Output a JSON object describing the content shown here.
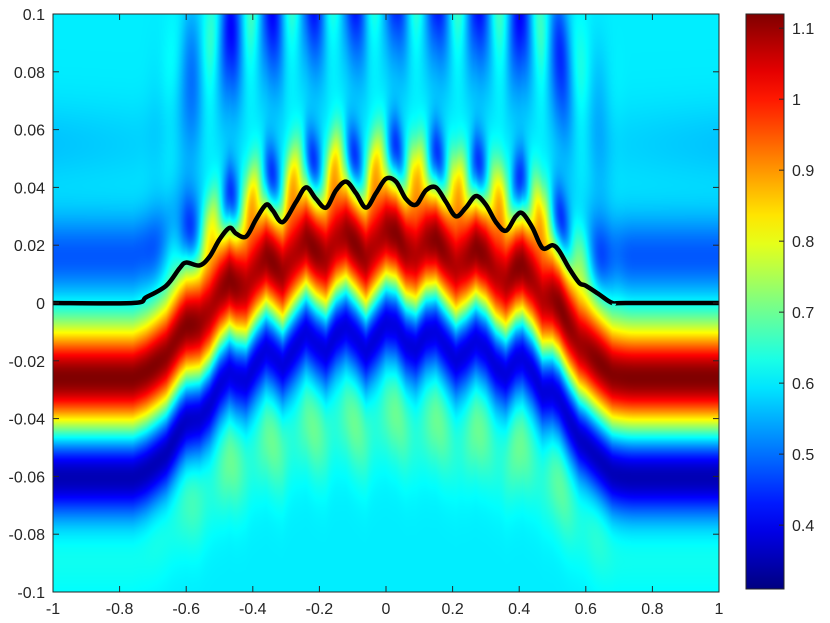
{
  "chart_data": {
    "type": "heatmap",
    "title": "",
    "xlabel": "",
    "ylabel": "",
    "xlim": [
      -1,
      1
    ],
    "ylim": [
      -0.1,
      0.1
    ],
    "x_ticks": [
      {
        "value": -1,
        "label": "-1"
      },
      {
        "value": -0.8,
        "label": "-0.8"
      },
      {
        "value": -0.6,
        "label": "-0.6"
      },
      {
        "value": -0.4,
        "label": "-0.4"
      },
      {
        "value": -0.2,
        "label": "-0.2"
      },
      {
        "value": 0,
        "label": "0"
      },
      {
        "value": 0.2,
        "label": "0.2"
      },
      {
        "value": 0.4,
        "label": "0.4"
      },
      {
        "value": 0.6,
        "label": "0.6"
      },
      {
        "value": 0.8,
        "label": "0.8"
      },
      {
        "value": 1,
        "label": "1"
      }
    ],
    "y_ticks": [
      {
        "value": 0.1,
        "label": "0.1"
      },
      {
        "value": 0.08,
        "label": "0.08"
      },
      {
        "value": 0.06,
        "label": "0.06"
      },
      {
        "value": 0.04,
        "label": "0.04"
      },
      {
        "value": 0.02,
        "label": "0.02"
      },
      {
        "value": 0,
        "label": "0"
      },
      {
        "value": -0.02,
        "label": "-0.02"
      },
      {
        "value": -0.04,
        "label": "-0.04"
      },
      {
        "value": -0.06,
        "label": "-0.06"
      },
      {
        "value": -0.08,
        "label": "-0.08"
      },
      {
        "value": -0.1,
        "label": "-0.1"
      }
    ],
    "colormap": "jet",
    "colorbar": {
      "range": [
        0.31,
        1.12
      ],
      "position": "right",
      "ticks": [
        {
          "value": 1.1,
          "label": "1.1"
        },
        {
          "value": 1,
          "label": "1"
        },
        {
          "value": 0.9,
          "label": "0.9"
        },
        {
          "value": 0.8,
          "label": "0.8"
        },
        {
          "value": 0.7,
          "label": "0.7"
        },
        {
          "value": 0.6,
          "label": "0.6"
        },
        {
          "value": 0.5,
          "label": "0.5"
        },
        {
          "value": 0.4,
          "label": "0.4"
        }
      ]
    },
    "grid": false,
    "field": {
      "description_values": "interference field: strong band (~1.1) just below the boundary curve, weak band (~0.35) around y=-0.06 at the edges, lobed pattern above the curve",
      "edge_peak_y": -0.025,
      "edge_trough_y": -0.06
    },
    "boundary_curve": {
      "color": "#000000",
      "x": [
        -1,
        -0.76,
        -0.72,
        -0.66,
        -0.62,
        -0.6,
        -0.56,
        -0.53,
        -0.5,
        -0.47,
        -0.45,
        -0.42,
        -0.39,
        -0.36,
        -0.34,
        -0.31,
        -0.27,
        -0.24,
        -0.21,
        -0.18,
        -0.15,
        -0.12,
        -0.09,
        -0.06,
        -0.03,
        0,
        0.03,
        0.06,
        0.09,
        0.12,
        0.15,
        0.18,
        0.21,
        0.24,
        0.27,
        0.3,
        0.33,
        0.36,
        0.39,
        0.41,
        0.44,
        0.47,
        0.5,
        0.52,
        0.55,
        0.58,
        0.6,
        0.64,
        0.68,
        0.72,
        1
      ],
      "y": [
        0,
        0,
        0.002,
        0.006,
        0.012,
        0.014,
        0.013,
        0.016,
        0.022,
        0.026,
        0.024,
        0.023,
        0.029,
        0.034,
        0.032,
        0.028,
        0.035,
        0.04,
        0.036,
        0.033,
        0.039,
        0.042,
        0.038,
        0.033,
        0.038,
        0.043,
        0.042,
        0.036,
        0.034,
        0.039,
        0.04,
        0.035,
        0.03,
        0.033,
        0.037,
        0.034,
        0.028,
        0.025,
        0.03,
        0.031,
        0.026,
        0.019,
        0.02,
        0.018,
        0.012,
        0.007,
        0.006,
        0.003,
        0,
        0,
        0
      ]
    }
  }
}
